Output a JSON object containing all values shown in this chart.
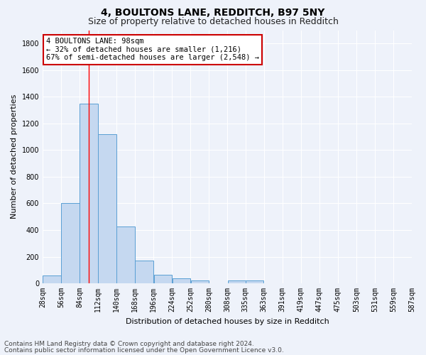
{
  "title1": "4, BOULTONS LANE, REDDITCH, B97 5NY",
  "title2": "Size of property relative to detached houses in Redditch",
  "xlabel": "Distribution of detached houses by size in Redditch",
  "ylabel": "Number of detached properties",
  "annotation_line1": "4 BOULTONS LANE: 98sqm",
  "annotation_line2": "← 32% of detached houses are smaller (1,216)",
  "annotation_line3": "67% of semi-detached houses are larger (2,548) →",
  "property_size_sqm": 98,
  "bin_edges": [
    28,
    56,
    84,
    112,
    140,
    168,
    196,
    224,
    252,
    280,
    308,
    335,
    363,
    391,
    419,
    447,
    475,
    503,
    531,
    559,
    587
  ],
  "bar_heights": [
    60,
    600,
    1350,
    1120,
    425,
    170,
    65,
    35,
    20,
    0,
    20,
    20,
    0,
    0,
    0,
    0,
    0,
    0,
    0,
    0
  ],
  "bar_color": "#c5d8f0",
  "bar_edge_color": "#5a9fd4",
  "red_line_x": 98,
  "ylim": [
    0,
    1900
  ],
  "yticks": [
    0,
    200,
    400,
    600,
    800,
    1000,
    1200,
    1400,
    1600,
    1800
  ],
  "tick_labels": [
    "28sqm",
    "56sqm",
    "84sqm",
    "112sqm",
    "140sqm",
    "168sqm",
    "196sqm",
    "224sqm",
    "252sqm",
    "280sqm",
    "308sqm",
    "335sqm",
    "363sqm",
    "391sqm",
    "419sqm",
    "447sqm",
    "475sqm",
    "503sqm",
    "531sqm",
    "559sqm",
    "587sqm"
  ],
  "footnote1": "Contains HM Land Registry data © Crown copyright and database right 2024.",
  "footnote2": "Contains public sector information licensed under the Open Government Licence v3.0.",
  "bg_color": "#eef2fa",
  "grid_color": "#ffffff",
  "annotation_box_color": "#ffffff",
  "annotation_border_color": "#cc0000",
  "title_fontsize": 10,
  "subtitle_fontsize": 9,
  "axis_label_fontsize": 8,
  "tick_fontsize": 7,
  "annotation_fontsize": 7.5,
  "footnote_fontsize": 6.5
}
